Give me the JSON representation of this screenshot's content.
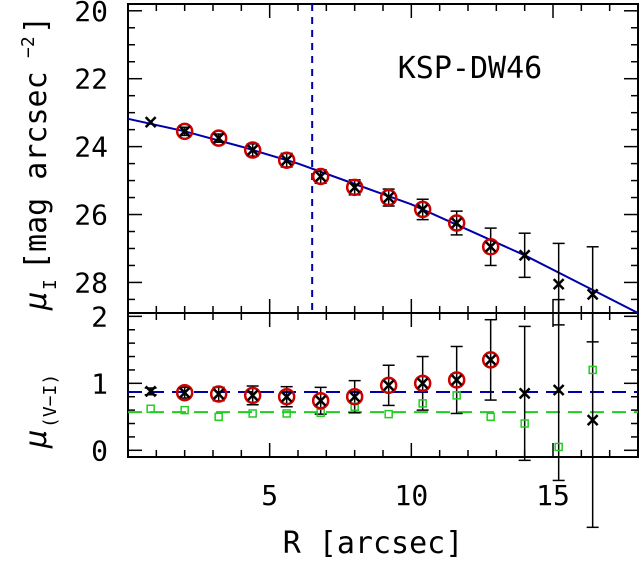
{
  "chart_data": [
    {
      "type": "scatter",
      "title": "",
      "panel_label": "KSP-DW46",
      "ylabel": "μ_I [mag arcsec⁻²]",
      "ylabel_main": "μ",
      "ylabel_sub": "I",
      "ylabel_unit": "[mag arcsec",
      "ylabel_exp": "−2",
      "ylabel_close": "]",
      "xlim": [
        0,
        18
      ],
      "ylim": [
        28.9,
        19.8
      ],
      "y_inverted": true,
      "yticks": [
        20,
        22,
        24,
        26,
        28
      ],
      "ytick_labels": [
        "20",
        "22",
        "24",
        "26",
        "28"
      ],
      "vline_x": 6.5,
      "series": [
        {
          "color": "#000000",
          "marker": "x",
          "x": [
            0.8,
            2.0,
            3.2,
            4.4,
            5.6,
            6.8,
            8.0,
            9.2,
            10.4,
            11.6,
            12.8,
            14.0,
            15.2,
            16.4
          ],
          "y": [
            23.28,
            23.55,
            23.75,
            24.1,
            24.4,
            24.88,
            25.2,
            25.5,
            25.85,
            26.25,
            26.95,
            27.2,
            28.05,
            28.35
          ],
          "yerr": [
            0,
            0.12,
            0.12,
            0.18,
            0.2,
            0.2,
            0.22,
            0.25,
            0.3,
            0.35,
            0.55,
            0.65,
            1.2,
            1.4
          ]
        },
        {
          "color": "#cc0000",
          "marker": "circle",
          "x": [
            2.0,
            3.2,
            4.4,
            5.6,
            6.8,
            8.0,
            9.2,
            10.4,
            11.6,
            12.8
          ],
          "y": [
            23.55,
            23.75,
            24.1,
            24.4,
            24.88,
            25.2,
            25.5,
            25.85,
            26.25,
            26.95
          ]
        }
      ],
      "fit_line": {
        "color": "#0000aa",
        "x": [
          0,
          2,
          4,
          6,
          8,
          10,
          12,
          14,
          16,
          18
        ],
        "y": [
          23.18,
          23.55,
          24.0,
          24.5,
          25.1,
          25.7,
          26.45,
          27.2,
          28.05,
          28.9
        ]
      }
    },
    {
      "type": "scatter",
      "title": "",
      "xlabel": "R [arcsec]",
      "ylabel": "μ_(V−I)",
      "ylabel_main": "μ",
      "ylabel_sub": "(V−I)",
      "xlim": [
        0,
        18
      ],
      "ylim": [
        -0.1,
        2.05
      ],
      "xticks": [
        5,
        10,
        15
      ],
      "xtick_labels": [
        "5",
        "10",
        "15"
      ],
      "yticks": [
        0,
        1,
        2
      ],
      "ytick_labels": [
        "0",
        "1",
        "2"
      ],
      "series": [
        {
          "color": "#000000",
          "marker": "x",
          "x": [
            0.8,
            2.0,
            3.2,
            4.4,
            5.6,
            6.8,
            8.0,
            9.2,
            10.4,
            11.6,
            12.8,
            14.0,
            15.2,
            16.4
          ],
          "y": [
            0.88,
            0.86,
            0.84,
            0.82,
            0.8,
            0.74,
            0.8,
            0.97,
            1.0,
            1.05,
            1.35,
            0.85,
            0.9,
            0.45
          ],
          "yerr": [
            0.05,
            0.08,
            0.1,
            0.14,
            0.15,
            0.2,
            0.24,
            0.3,
            0.4,
            0.5,
            0.6,
            1.0,
            1.35,
            1.6
          ]
        },
        {
          "color": "#cc0000",
          "marker": "circle",
          "x": [
            2.0,
            3.2,
            4.4,
            5.6,
            6.8,
            8.0,
            9.2,
            10.4,
            11.6,
            12.8
          ],
          "y": [
            0.86,
            0.84,
            0.82,
            0.8,
            0.74,
            0.8,
            0.97,
            1.0,
            1.05,
            1.35
          ]
        },
        {
          "color": "#22cc22",
          "marker": "square",
          "x": [
            0.8,
            2.0,
            3.2,
            4.4,
            5.6,
            6.8,
            8.0,
            9.2,
            10.4,
            11.6,
            12.8,
            14.0,
            15.2,
            16.4
          ],
          "y": [
            0.62,
            0.6,
            0.5,
            0.55,
            0.55,
            0.56,
            0.65,
            0.54,
            0.7,
            0.82,
            0.5,
            0.4,
            0.05,
            1.2
          ]
        }
      ],
      "ref_lines": [
        {
          "y": 0.87,
          "color": "#0000aa",
          "style": "dashed"
        },
        {
          "y": 0.57,
          "color": "#22cc22",
          "style": "dashed"
        }
      ]
    }
  ]
}
